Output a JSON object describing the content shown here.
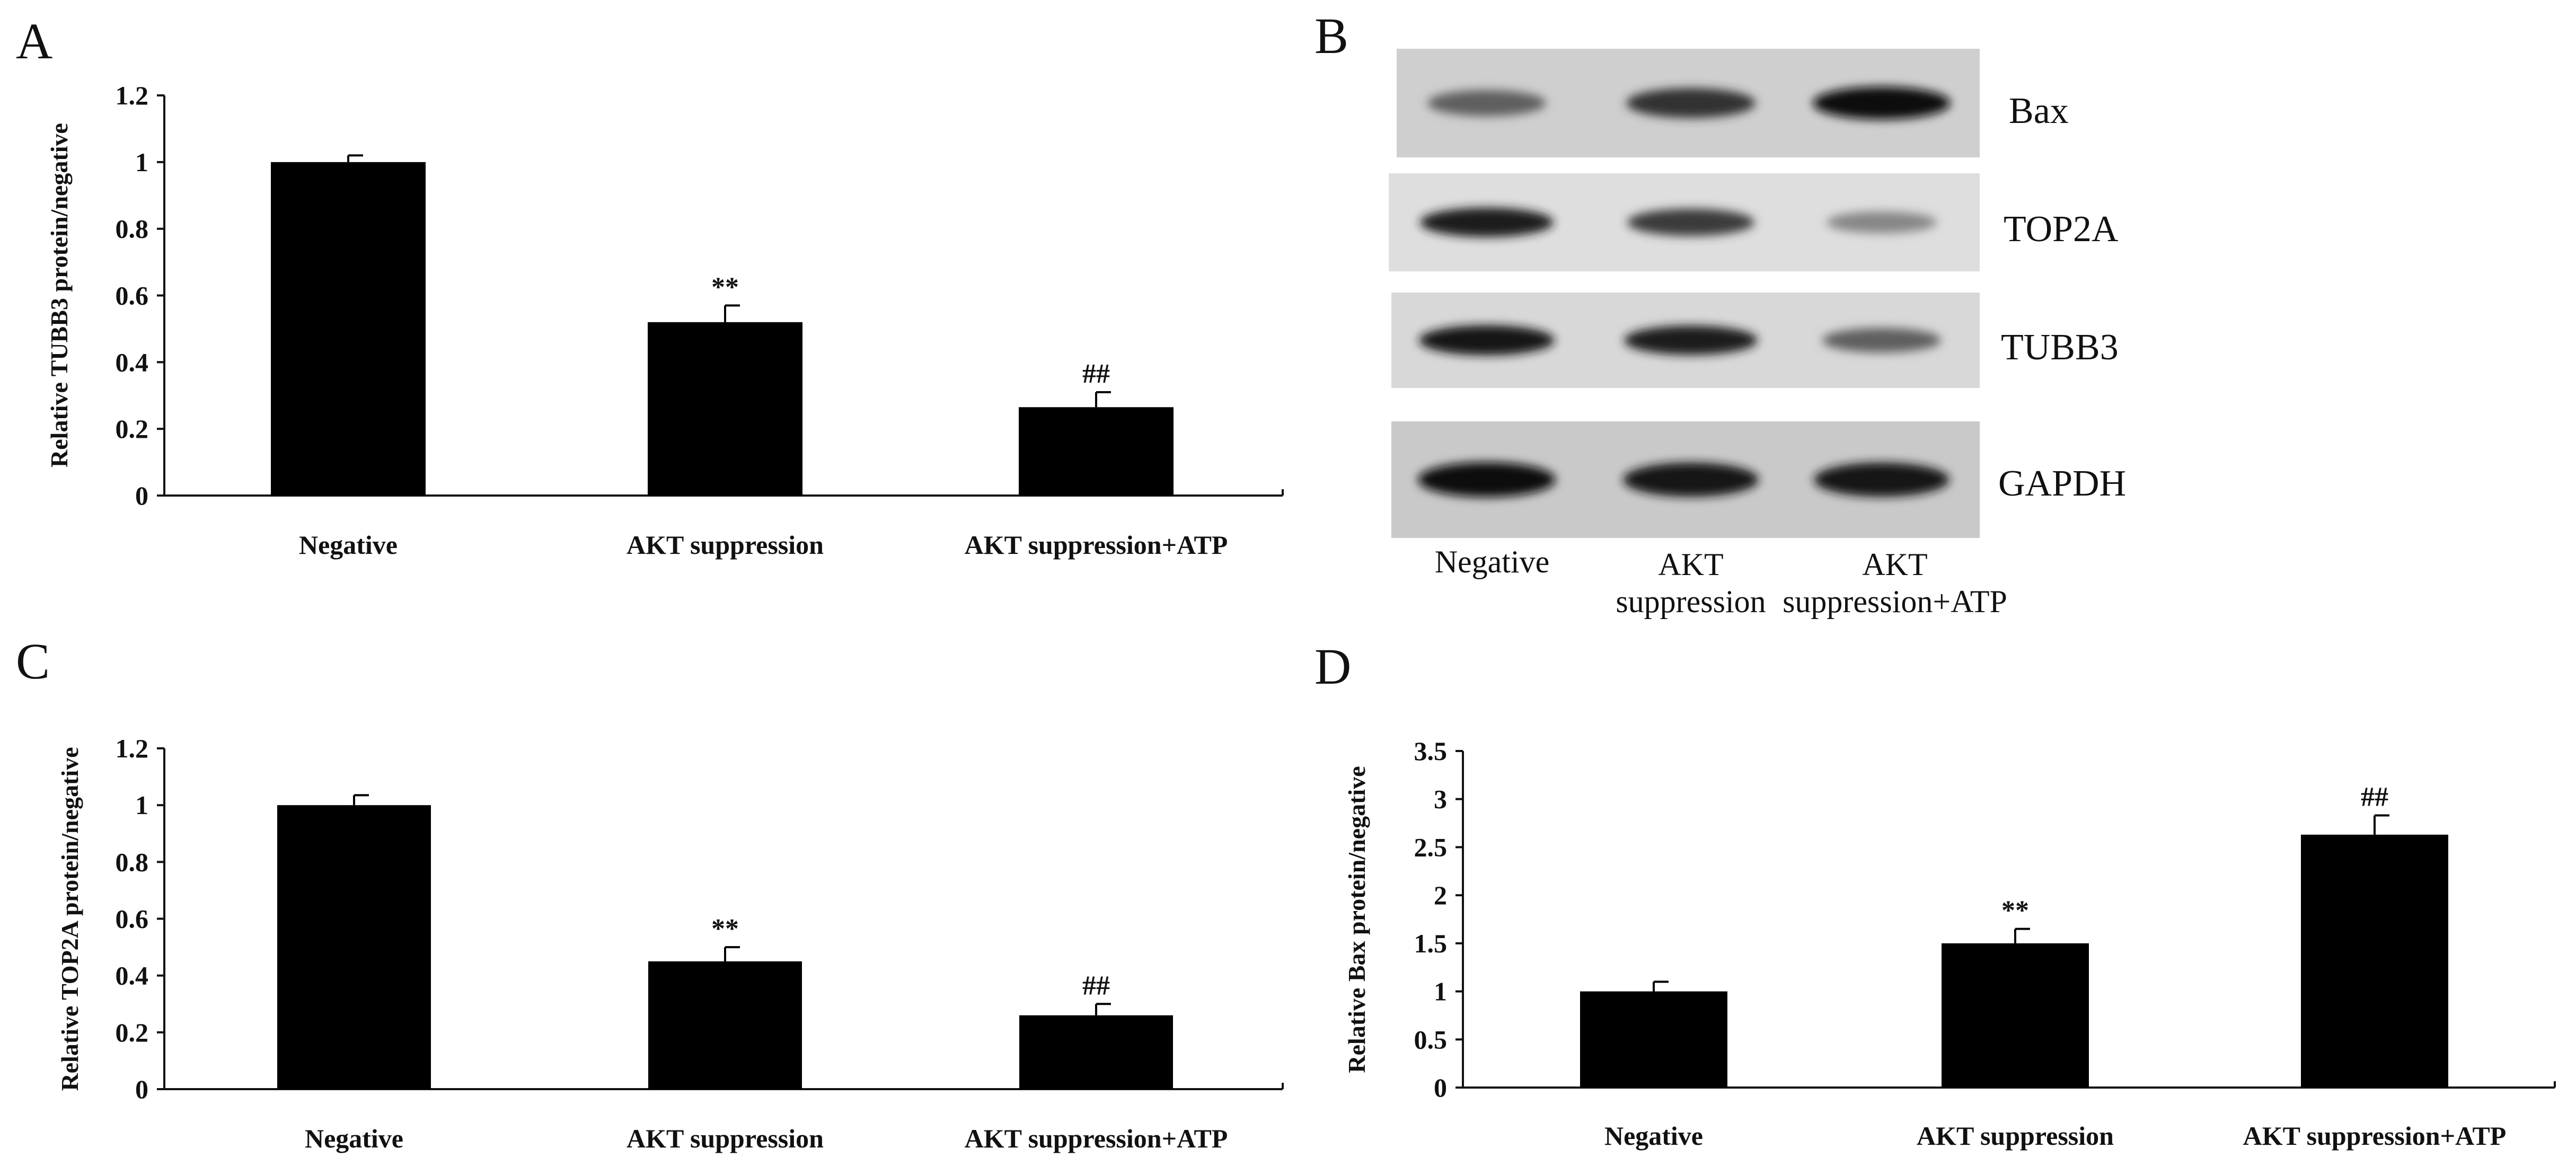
{
  "chart_data": [
    {
      "panel": "A",
      "type": "bar",
      "categories": [
        "Negative",
        "AKT suppression",
        "AKT suppression+ATP"
      ],
      "values": [
        1.0,
        0.52,
        0.265
      ],
      "errors": [
        0.02,
        0.05,
        0.045
      ],
      "annotations": [
        "",
        "**",
        "##"
      ],
      "ylabel": "Relative TUBB3 protein/negative",
      "ylim": [
        0,
        1.2
      ],
      "yticks": [
        0,
        0.2,
        0.4,
        0.6,
        0.8,
        1,
        1.2
      ],
      "grid": false,
      "color": "#000000"
    },
    {
      "panel": "C",
      "type": "bar",
      "categories": [
        "Negative",
        "AKT suppression",
        "AKT suppression+ATP"
      ],
      "values": [
        1.0,
        0.45,
        0.26
      ],
      "errors": [
        0.035,
        0.05,
        0.04
      ],
      "annotations": [
        "",
        "**",
        "##"
      ],
      "ylabel": "Relative TOP2A protein/negative",
      "ylim": [
        0,
        1.2
      ],
      "yticks": [
        0,
        0.2,
        0.4,
        0.6,
        0.8,
        1,
        1.2
      ],
      "grid": false,
      "color": "#000000"
    },
    {
      "panel": "D",
      "type": "bar",
      "categories": [
        "Negative",
        "AKT suppression",
        "AKT suppression+ATP"
      ],
      "values": [
        1.0,
        1.5,
        2.63
      ],
      "errors": [
        0.1,
        0.15,
        0.2
      ],
      "annotations": [
        "",
        "**",
        "##"
      ],
      "ylabel": "Relative Bax protein/negative",
      "ylim": [
        0,
        3.5
      ],
      "yticks": [
        0,
        0.5,
        1,
        1.5,
        2,
        2.5,
        3,
        3.5
      ],
      "grid": false,
      "color": "#000000"
    }
  ],
  "blot": {
    "panel": "B",
    "proteins": [
      "Bax",
      "TOP2A",
      "TUBB3",
      "GAPDH"
    ],
    "lanes": [
      {
        "line1": "Negative",
        "line2": ""
      },
      {
        "line1": "AKT",
        "line2": "suppression"
      },
      {
        "line1": "AKT",
        "line2": "suppression+ATP"
      }
    ],
    "band_intensity": [
      [
        0.55,
        0.8,
        1.0
      ],
      [
        0.9,
        0.75,
        0.35
      ],
      [
        0.95,
        0.9,
        0.55
      ],
      [
        1.0,
        0.95,
        0.95
      ]
    ]
  }
}
